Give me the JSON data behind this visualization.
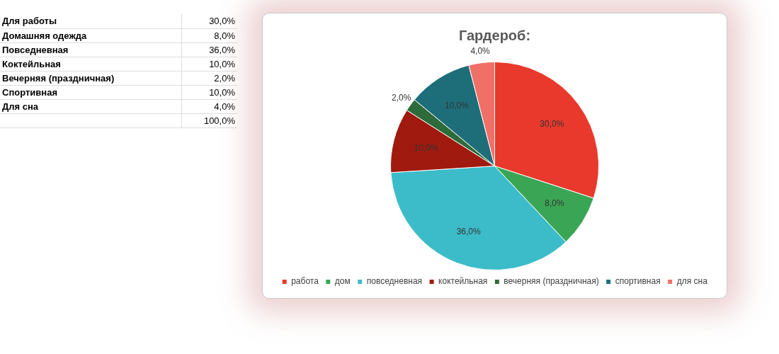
{
  "chart_data": [
    {
      "type": "other",
      "categories": [
        "Для работы",
        "Домашняя одежда",
        "Повседневная",
        "Коктейльная",
        "Вечерняя (праздничная)",
        "Спортивная",
        "Для сна",
        null
      ],
      "value_labels": [
        "30,0%",
        "8,0%",
        "36,0%",
        "10,0%",
        "2,0%",
        "10,0%",
        "4,0%",
        "100,0%"
      ]
    },
    {
      "type": "pie",
      "title": "Гардероб:",
      "categories": [
        "работа",
        "дом",
        "повседневная",
        "коктейльная",
        "вечерняя (праздничная)",
        "спортивная",
        "для сна"
      ],
      "values": [
        30,
        8,
        36,
        10,
        2,
        10,
        4
      ],
      "colors": [
        "#e8392c",
        "#3aa655",
        "#3cbcc8",
        "#a01a10",
        "#2e6b3a",
        "#1e6e7a",
        "#f07068"
      ],
      "value_labels": [
        "30,0%",
        "8,0%",
        "36,0%",
        "10,0%",
        "2,0%",
        "10,0%",
        "4,0%"
      ],
      "legend": "bottom"
    }
  ]
}
